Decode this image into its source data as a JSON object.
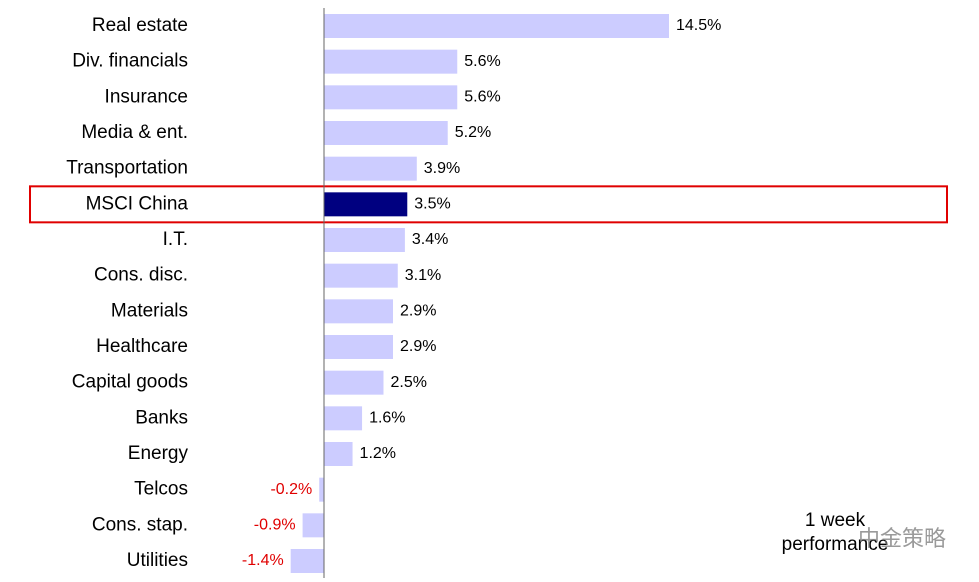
{
  "chart_data": {
    "type": "hbar",
    "categories": [
      "Real estate",
      "Div. financials",
      "Insurance",
      "Media & ent.",
      "Transportation",
      "MSCI China",
      "I.T.",
      "Cons. disc.",
      "Materials",
      "Healthcare",
      "Capital goods",
      "Banks",
      "Energy",
      "Telcos",
      "Cons. stap.",
      "Utilities"
    ],
    "values": [
      14.5,
      5.6,
      5.6,
      5.2,
      3.9,
      3.5,
      3.4,
      3.1,
      2.9,
      2.9,
      2.5,
      1.6,
      1.2,
      -0.2,
      -0.9,
      -1.4
    ],
    "value_labels": [
      "14.5%",
      "5.6%",
      "5.6%",
      "5.2%",
      "3.9%",
      "3.5%",
      "3.4%",
      "3.1%",
      "2.9%",
      "2.9%",
      "2.5%",
      "1.6%",
      "1.2%",
      "-0.2%",
      "-0.9%",
      "-1.4%"
    ],
    "colors": [
      "#ccccff",
      "#ccccff",
      "#ccccff",
      "#ccccff",
      "#ccccff",
      "#000080",
      "#ccccff",
      "#ccccff",
      "#ccccff",
      "#ccccff",
      "#ccccff",
      "#ccccff",
      "#ccccff",
      "#ccccff",
      "#ccccff",
      "#ccccff"
    ],
    "negative_label_color": "#e00000",
    "highlight_box": {
      "index": 5,
      "color": "#e00000"
    },
    "annotation": [
      "1 week",
      "performance"
    ],
    "watermark": "中金策略"
  }
}
